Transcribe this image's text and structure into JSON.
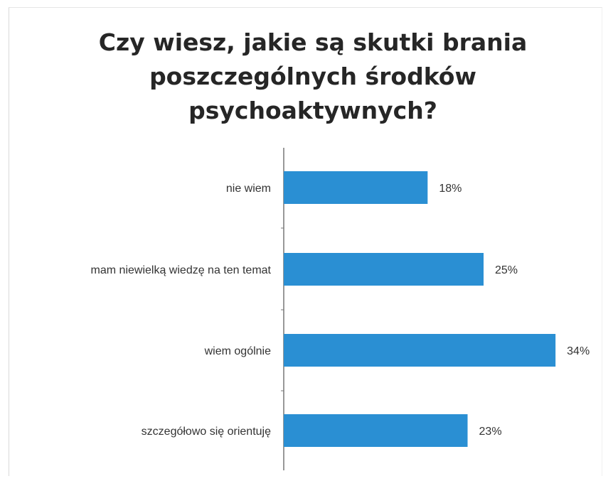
{
  "chart_data": {
    "type": "bar",
    "orientation": "horizontal",
    "title_lines": [
      "Czy wiesz, jakie są skutki brania",
      "poszczególnych środków",
      "psychoaktywnych?"
    ],
    "categories": [
      "nie wiem",
      "mam niewielką wiedzę na ten temat",
      "wiem ogólnie",
      "szczegółowo się orientuję"
    ],
    "values": [
      18,
      25,
      34,
      23
    ],
    "value_labels": [
      "18%",
      "25%",
      "34%",
      "23%"
    ],
    "unit": "%",
    "bar_color": "#2a8fd3",
    "grid": false,
    "legend": "none"
  }
}
